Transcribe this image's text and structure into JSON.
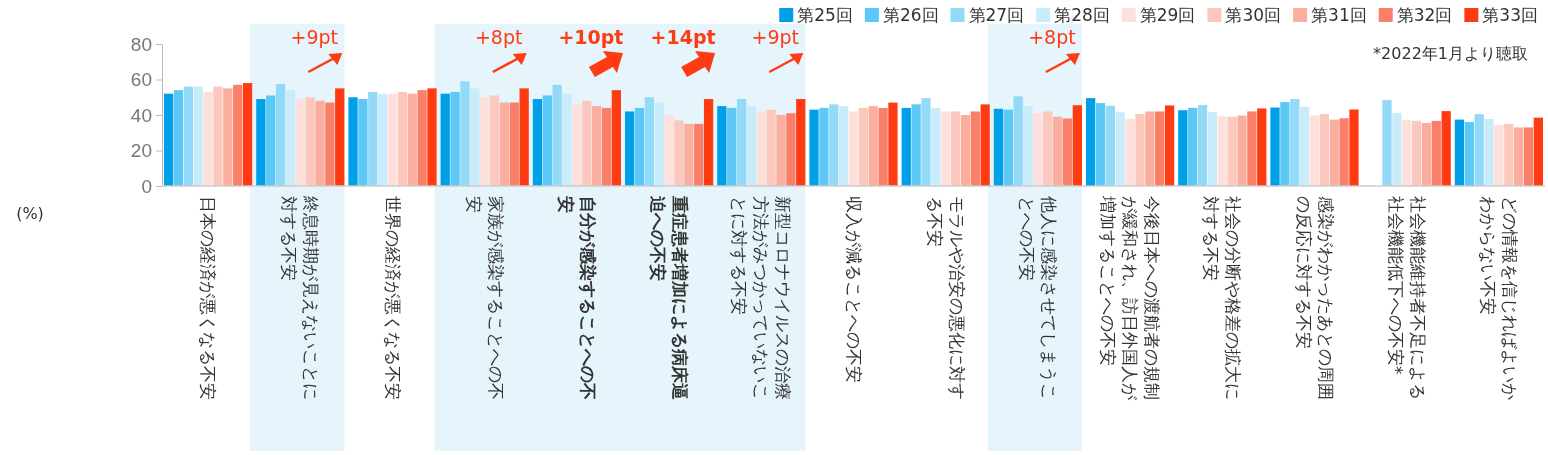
{
  "chart_data": {
    "type": "bar",
    "categories": [
      "日本の経済が悪くなる不安",
      "終息時期が見えないことに対する不安",
      "世界の経済が悪くなる不安",
      "家族が感染することへの不安",
      "自分が感染することへの不安",
      "重症患者増加による病床逼迫への不安",
      "新型コロナウイルスの治療方法がみつかっていないことに対する不安",
      "収入が減ることへの不安",
      "モラルや治安の悪化に対する不安",
      "他人に感染させてしまうことへの不安",
      "今後日本への渡航者の規制が緩和され、訪日外国人が増加することへの不安",
      "社会の分断や格差の拡大に対する不安",
      "感染がわかったあとの周囲の反応に対する不安",
      "社会機能維持者不足による社会機能低下への不安*",
      "どの情報を信じればよいかわからない不安"
    ],
    "series": [
      {
        "name": "第25回",
        "color": "#00a0e9",
        "values": [
          52,
          49,
          50,
          52,
          49,
          42,
          45,
          43,
          44,
          43.5,
          49.5,
          42.7,
          44.2,
          null,
          37.4
        ]
      },
      {
        "name": "第26回",
        "color": "#5bc8f5",
        "values": [
          54,
          51,
          49,
          53,
          51,
          44,
          44,
          44,
          46,
          43,
          46.7,
          44,
          47.3,
          null,
          36
        ]
      },
      {
        "name": "第27回",
        "color": "#93d9f8",
        "values": [
          56,
          57.5,
          53,
          59,
          57,
          50,
          49,
          46,
          49.5,
          50.5,
          45.2,
          45.6,
          49,
          48.4,
          40.5
        ]
      },
      {
        "name": "第28回",
        "color": "#c9ecfb",
        "values": [
          56,
          54,
          52,
          55,
          52,
          47,
          45,
          45,
          44,
          45,
          41.6,
          41.6,
          44.6,
          41.2,
          37.8
        ]
      },
      {
        "name": "第29回",
        "color": "#fde0dc",
        "values": [
          53,
          49,
          52,
          50,
          46,
          40,
          42,
          42,
          42,
          41,
          37.8,
          39.3,
          39.7,
          37.2,
          34.4
        ]
      },
      {
        "name": "第30回",
        "color": "#fcc7bd",
        "values": [
          56,
          50,
          53,
          51,
          48,
          37,
          43,
          44,
          42,
          42,
          40.6,
          39,
          40.5,
          36.7,
          35
        ]
      },
      {
        "name": "第31回",
        "color": "#fbad9e",
        "values": [
          55,
          48,
          52,
          47,
          45,
          35,
          40,
          45,
          40,
          39,
          42,
          39.7,
          37.4,
          35.5,
          33
        ]
      },
      {
        "name": "第32回",
        "color": "#f97f68",
        "values": [
          57,
          47,
          54,
          47,
          44,
          35,
          41,
          44,
          42,
          38,
          42,
          42,
          38.2,
          36.7,
          33
        ]
      },
      {
        "name": "第33回",
        "color": "#ff3b14",
        "values": [
          58,
          55,
          55,
          55,
          54,
          49,
          49,
          47,
          46,
          45.5,
          45.4,
          43.7,
          43.1,
          42.2,
          38.5
        ]
      }
    ],
    "ylim": [
      0,
      80
    ],
    "yticks": [
      0,
      20,
      40,
      60,
      80
    ],
    "legend": "top right",
    "bands": [
      {
        "axis": "x",
        "from": "終息時期が見えないことに対する不安",
        "to": "終息時期が見えないことに対する不安",
        "color": "#e6f4fb"
      },
      {
        "axis": "x",
        "from": "家族が感染することへの不安",
        "to": "新型コロナウイルスの治療方法がみつかっていないことに対する不安",
        "color": "#e6f4fb"
      },
      {
        "axis": "x",
        "from": "他人に感染させてしまうことへの不安",
        "to": "他人に感染させてしまうことへの不安",
        "color": "#e6f4fb"
      }
    ],
    "annotations": [
      "+9pt",
      "+8pt",
      "+10pt",
      "+14pt",
      "+9pt",
      "+8pt",
      "*2022年1月より聴取",
      "(%)"
    ]
  }
}
